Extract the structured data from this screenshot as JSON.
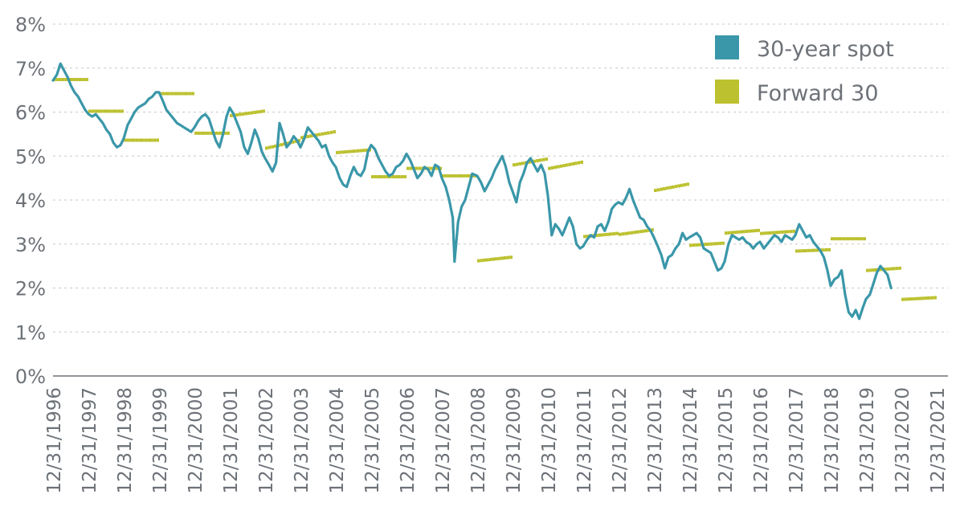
{
  "chart_data": {
    "type": "line",
    "title": "",
    "xlabel": "",
    "ylabel": "",
    "ylim": [
      0,
      8
    ],
    "y_ticks": [
      "0%",
      "1%",
      "2%",
      "3%",
      "4%",
      "5%",
      "6%",
      "7%",
      "8%"
    ],
    "x_ticks": [
      "12/31/1996",
      "12/31/1997",
      "12/31/1998",
      "12/31/1999",
      "12/31/2000",
      "12/31/2001",
      "12/31/2002",
      "12/31/2003",
      "12/31/2004",
      "12/31/2005",
      "12/31/2006",
      "12/31/2007",
      "12/31/2008",
      "12/31/2009",
      "12/31/2010",
      "12/31/2011",
      "12/31/2012",
      "12/31/2013",
      "12/31/2014",
      "12/31/2015",
      "12/31/2016",
      "12/31/2017",
      "12/31/2018",
      "12/31/2019",
      "12/31/2020",
      "12/31/2021"
    ],
    "grid": true,
    "legend_position": "top-right",
    "colors": {
      "spot": "#3a97a9",
      "forward": "#bcc12f",
      "axis_text": "#6d7278"
    },
    "series": [
      {
        "name": "30-year spot",
        "kind": "line",
        "points": [
          [
            1996.99,
            6.72
          ],
          [
            1997.1,
            6.85
          ],
          [
            1997.2,
            7.1
          ],
          [
            1997.3,
            6.95
          ],
          [
            1997.4,
            6.8
          ],
          [
            1997.5,
            6.6
          ],
          [
            1997.6,
            6.45
          ],
          [
            1997.7,
            6.35
          ],
          [
            1997.8,
            6.2
          ],
          [
            1997.9,
            6.05
          ],
          [
            1998.0,
            5.95
          ],
          [
            1998.1,
            5.9
          ],
          [
            1998.2,
            5.95
          ],
          [
            1998.3,
            5.85
          ],
          [
            1998.4,
            5.75
          ],
          [
            1998.5,
            5.6
          ],
          [
            1998.6,
            5.5
          ],
          [
            1998.7,
            5.3
          ],
          [
            1998.8,
            5.2
          ],
          [
            1998.9,
            5.25
          ],
          [
            1998.99,
            5.4
          ],
          [
            1999.1,
            5.7
          ],
          [
            1999.2,
            5.85
          ],
          [
            1999.3,
            6.0
          ],
          [
            1999.4,
            6.1
          ],
          [
            1999.5,
            6.15
          ],
          [
            1999.6,
            6.2
          ],
          [
            1999.7,
            6.3
          ],
          [
            1999.8,
            6.35
          ],
          [
            1999.9,
            6.45
          ],
          [
            1999.99,
            6.45
          ],
          [
            2000.1,
            6.25
          ],
          [
            2000.2,
            6.05
          ],
          [
            2000.3,
            5.95
          ],
          [
            2000.4,
            5.85
          ],
          [
            2000.5,
            5.75
          ],
          [
            2000.6,
            5.7
          ],
          [
            2000.7,
            5.65
          ],
          [
            2000.8,
            5.6
          ],
          [
            2000.9,
            5.55
          ],
          [
            2000.99,
            5.65
          ],
          [
            2001.1,
            5.8
          ],
          [
            2001.2,
            5.9
          ],
          [
            2001.3,
            5.95
          ],
          [
            2001.4,
            5.85
          ],
          [
            2001.5,
            5.6
          ],
          [
            2001.6,
            5.35
          ],
          [
            2001.7,
            5.2
          ],
          [
            2001.8,
            5.5
          ],
          [
            2001.9,
            5.9
          ],
          [
            2001.99,
            6.1
          ],
          [
            2002.1,
            5.95
          ],
          [
            2002.2,
            5.75
          ],
          [
            2002.3,
            5.55
          ],
          [
            2002.4,
            5.2
          ],
          [
            2002.5,
            5.05
          ],
          [
            2002.6,
            5.3
          ],
          [
            2002.7,
            5.6
          ],
          [
            2002.8,
            5.4
          ],
          [
            2002.9,
            5.1
          ],
          [
            2002.99,
            4.95
          ],
          [
            2003.1,
            4.8
          ],
          [
            2003.2,
            4.65
          ],
          [
            2003.3,
            4.85
          ],
          [
            2003.4,
            5.75
          ],
          [
            2003.5,
            5.5
          ],
          [
            2003.6,
            5.2
          ],
          [
            2003.7,
            5.3
          ],
          [
            2003.8,
            5.45
          ],
          [
            2003.9,
            5.35
          ],
          [
            2003.99,
            5.2
          ],
          [
            2004.1,
            5.4
          ],
          [
            2004.2,
            5.65
          ],
          [
            2004.3,
            5.55
          ],
          [
            2004.4,
            5.45
          ],
          [
            2004.5,
            5.35
          ],
          [
            2004.6,
            5.2
          ],
          [
            2004.7,
            5.25
          ],
          [
            2004.8,
            5.0
          ],
          [
            2004.9,
            4.85
          ],
          [
            2004.99,
            4.75
          ],
          [
            2005.1,
            4.5
          ],
          [
            2005.2,
            4.35
          ],
          [
            2005.3,
            4.3
          ],
          [
            2005.4,
            4.55
          ],
          [
            2005.5,
            4.75
          ],
          [
            2005.6,
            4.6
          ],
          [
            2005.7,
            4.55
          ],
          [
            2005.8,
            4.7
          ],
          [
            2005.9,
            5.1
          ],
          [
            2005.99,
            5.25
          ],
          [
            2006.1,
            5.15
          ],
          [
            2006.2,
            4.95
          ],
          [
            2006.3,
            4.8
          ],
          [
            2006.4,
            4.65
          ],
          [
            2006.5,
            4.55
          ],
          [
            2006.6,
            4.6
          ],
          [
            2006.7,
            4.75
          ],
          [
            2006.8,
            4.8
          ],
          [
            2006.9,
            4.9
          ],
          [
            2006.99,
            5.05
          ],
          [
            2007.1,
            4.9
          ],
          [
            2007.2,
            4.7
          ],
          [
            2007.3,
            4.5
          ],
          [
            2007.4,
            4.6
          ],
          [
            2007.5,
            4.75
          ],
          [
            2007.6,
            4.7
          ],
          [
            2007.7,
            4.55
          ],
          [
            2007.8,
            4.8
          ],
          [
            2007.9,
            4.75
          ],
          [
            2007.99,
            4.5
          ],
          [
            2008.1,
            4.3
          ],
          [
            2008.2,
            4.0
          ],
          [
            2008.3,
            3.6
          ],
          [
            2008.35,
            2.6
          ],
          [
            2008.45,
            3.5
          ],
          [
            2008.55,
            3.85
          ],
          [
            2008.65,
            4.0
          ],
          [
            2008.75,
            4.3
          ],
          [
            2008.85,
            4.6
          ],
          [
            2008.99,
            4.55
          ],
          [
            2009.1,
            4.4
          ],
          [
            2009.2,
            4.2
          ],
          [
            2009.3,
            4.35
          ],
          [
            2009.4,
            4.5
          ],
          [
            2009.5,
            4.7
          ],
          [
            2009.6,
            4.85
          ],
          [
            2009.7,
            5.0
          ],
          [
            2009.8,
            4.75
          ],
          [
            2009.9,
            4.4
          ],
          [
            2009.99,
            4.2
          ],
          [
            2010.1,
            3.95
          ],
          [
            2010.2,
            4.4
          ],
          [
            2010.3,
            4.6
          ],
          [
            2010.4,
            4.85
          ],
          [
            2010.5,
            4.95
          ],
          [
            2010.6,
            4.8
          ],
          [
            2010.7,
            4.65
          ],
          [
            2010.8,
            4.8
          ],
          [
            2010.9,
            4.6
          ],
          [
            2010.99,
            4.1
          ],
          [
            2011.1,
            3.2
          ],
          [
            2011.2,
            3.45
          ],
          [
            2011.3,
            3.35
          ],
          [
            2011.4,
            3.2
          ],
          [
            2011.5,
            3.4
          ],
          [
            2011.6,
            3.6
          ],
          [
            2011.7,
            3.4
          ],
          [
            2011.8,
            3.0
          ],
          [
            2011.9,
            2.9
          ],
          [
            2011.99,
            2.95
          ],
          [
            2012.1,
            3.1
          ],
          [
            2012.2,
            3.2
          ],
          [
            2012.3,
            3.15
          ],
          [
            2012.4,
            3.4
          ],
          [
            2012.5,
            3.45
          ],
          [
            2012.6,
            3.3
          ],
          [
            2012.7,
            3.5
          ],
          [
            2012.8,
            3.8
          ],
          [
            2012.9,
            3.9
          ],
          [
            2012.99,
            3.95
          ],
          [
            2013.1,
            3.9
          ],
          [
            2013.2,
            4.05
          ],
          [
            2013.3,
            4.25
          ],
          [
            2013.4,
            4.0
          ],
          [
            2013.5,
            3.8
          ],
          [
            2013.6,
            3.6
          ],
          [
            2013.7,
            3.55
          ],
          [
            2013.8,
            3.4
          ],
          [
            2013.9,
            3.3
          ],
          [
            2013.99,
            3.15
          ],
          [
            2014.1,
            2.95
          ],
          [
            2014.2,
            2.75
          ],
          [
            2014.3,
            2.45
          ],
          [
            2014.4,
            2.7
          ],
          [
            2014.5,
            2.75
          ],
          [
            2014.6,
            2.9
          ],
          [
            2014.7,
            3.0
          ],
          [
            2014.8,
            3.25
          ],
          [
            2014.9,
            3.1
          ],
          [
            2014.99,
            3.15
          ],
          [
            2015.1,
            3.2
          ],
          [
            2015.2,
            3.25
          ],
          [
            2015.3,
            3.15
          ],
          [
            2015.4,
            2.9
          ],
          [
            2015.5,
            2.85
          ],
          [
            2015.6,
            2.8
          ],
          [
            2015.7,
            2.6
          ],
          [
            2015.8,
            2.4
          ],
          [
            2015.9,
            2.45
          ],
          [
            2015.99,
            2.6
          ],
          [
            2016.1,
            3.0
          ],
          [
            2016.2,
            3.2
          ],
          [
            2016.3,
            3.15
          ],
          [
            2016.4,
            3.1
          ],
          [
            2016.5,
            3.15
          ],
          [
            2016.6,
            3.05
          ],
          [
            2016.7,
            3.0
          ],
          [
            2016.8,
            2.9
          ],
          [
            2016.9,
            3.0
          ],
          [
            2016.99,
            3.05
          ],
          [
            2017.1,
            2.9
          ],
          [
            2017.2,
            3.0
          ],
          [
            2017.3,
            3.1
          ],
          [
            2017.4,
            3.2
          ],
          [
            2017.5,
            3.15
          ],
          [
            2017.6,
            3.05
          ],
          [
            2017.7,
            3.2
          ],
          [
            2017.8,
            3.15
          ],
          [
            2017.9,
            3.1
          ],
          [
            2017.99,
            3.2
          ],
          [
            2018.1,
            3.45
          ],
          [
            2018.2,
            3.3
          ],
          [
            2018.3,
            3.15
          ],
          [
            2018.4,
            3.2
          ],
          [
            2018.5,
            3.05
          ],
          [
            2018.6,
            2.95
          ],
          [
            2018.7,
            2.85
          ],
          [
            2018.8,
            2.7
          ],
          [
            2018.9,
            2.4
          ],
          [
            2018.99,
            2.05
          ],
          [
            2019.1,
            2.2
          ],
          [
            2019.2,
            2.25
          ],
          [
            2019.3,
            2.4
          ],
          [
            2019.4,
            1.85
          ],
          [
            2019.5,
            1.45
          ],
          [
            2019.6,
            1.35
          ],
          [
            2019.7,
            1.5
          ],
          [
            2019.8,
            1.3
          ],
          [
            2019.9,
            1.55
          ],
          [
            2019.99,
            1.75
          ],
          [
            2020.1,
            1.85
          ],
          [
            2020.2,
            2.1
          ],
          [
            2020.3,
            2.35
          ],
          [
            2020.4,
            2.5
          ],
          [
            2020.5,
            2.4
          ],
          [
            2020.6,
            2.3
          ],
          [
            2020.7,
            2.0
          ]
        ]
      },
      {
        "name": "Forward 30",
        "kind": "steps",
        "segments": [
          [
            1996.99,
            1997.99,
            6.74
          ],
          [
            1997.99,
            1998.99,
            6.02
          ],
          [
            1998.99,
            1999.99,
            5.36
          ],
          [
            1999.99,
            2000.99,
            6.42
          ],
          [
            2000.99,
            2001.99,
            5.52
          ],
          [
            2001.99,
            2002.99,
            5.92,
            6.02
          ],
          [
            2002.99,
            2003.99,
            5.18,
            5.35
          ],
          [
            2003.99,
            2004.99,
            5.42,
            5.55
          ],
          [
            2004.99,
            2005.99,
            5.08,
            5.14
          ],
          [
            2005.99,
            2006.99,
            4.53
          ],
          [
            2006.99,
            2007.99,
            4.72
          ],
          [
            2007.99,
            2008.99,
            4.55
          ],
          [
            2008.99,
            2009.99,
            2.62,
            2.7
          ],
          [
            2009.99,
            2010.99,
            4.8,
            4.93
          ],
          [
            2010.99,
            2011.99,
            4.72,
            4.86
          ],
          [
            2011.99,
            2012.99,
            3.17,
            3.24
          ],
          [
            2012.99,
            2013.99,
            3.22,
            3.32
          ],
          [
            2013.99,
            2014.99,
            4.22,
            4.36
          ],
          [
            2014.99,
            2015.99,
            2.97,
            3.02
          ],
          [
            2015.99,
            2016.99,
            3.25,
            3.31
          ],
          [
            2016.99,
            2017.99,
            3.24,
            3.29
          ],
          [
            2017.99,
            2018.99,
            2.84,
            2.87
          ],
          [
            2018.99,
            2019.99,
            3.12
          ],
          [
            2019.99,
            2020.99,
            2.4,
            2.45
          ],
          [
            2020.99,
            2021.99,
            1.74,
            1.78
          ]
        ]
      }
    ]
  },
  "legend": {
    "items": [
      {
        "label": "30-year spot",
        "color": "#3a97a9"
      },
      {
        "label": "Forward 30",
        "color": "#bcc12f"
      }
    ]
  }
}
